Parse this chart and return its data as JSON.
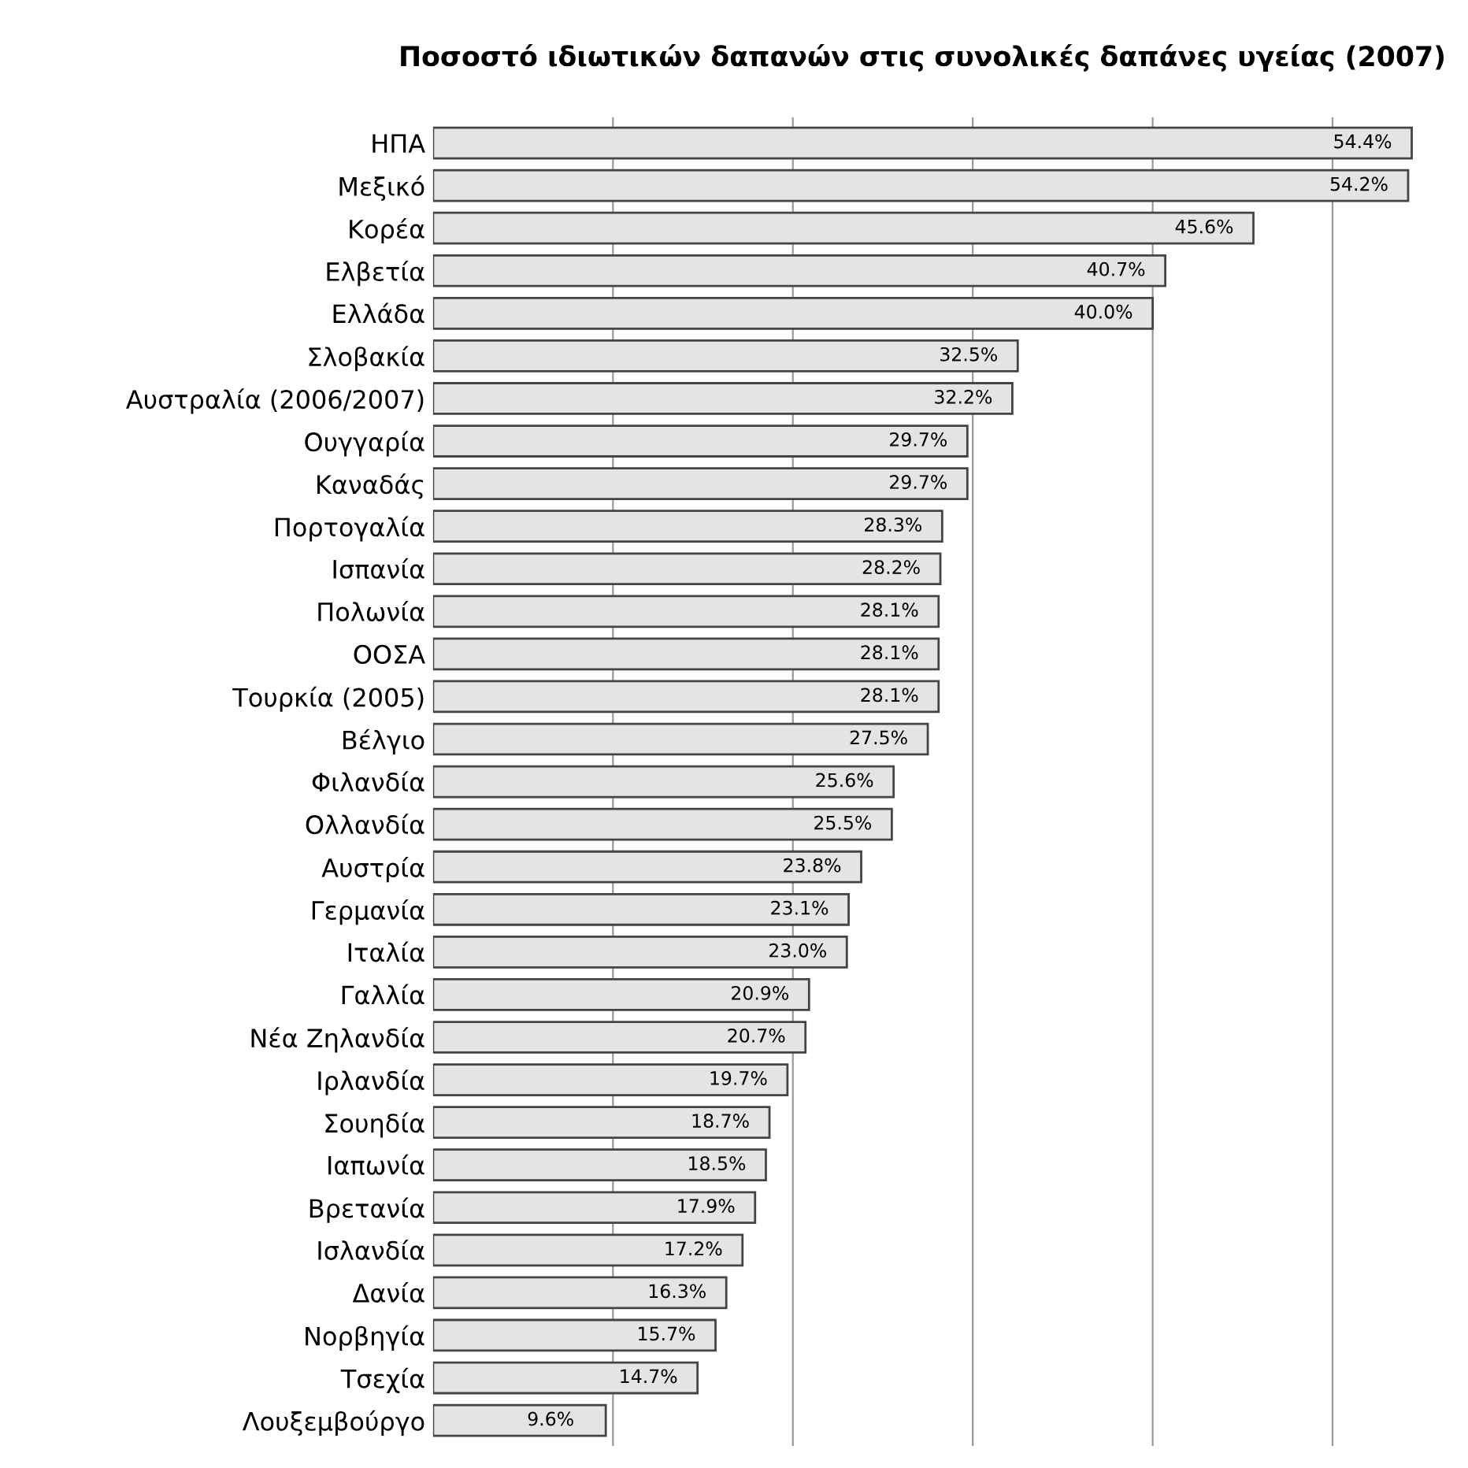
{
  "chart_data": {
    "type": "bar",
    "orientation": "horizontal",
    "title": "Ποσοστό ιδιωτικών δαπανών στις συνολικές δαπάνες υγείας (2007)",
    "categories": [
      "ΗΠΑ",
      "Μεξικό",
      "Κορέα",
      "Ελβετία",
      "Ελλάδα",
      "Σλοβακία",
      "Αυστραλία (2006/2007)",
      "Ουγγαρία",
      "Καναδάς",
      "Πορτογαλία",
      "Ισπανία",
      "Πολωνία",
      "ΟΟΣΑ",
      "Τουρκία (2005)",
      "Βέλγιο",
      "Φιλανδία",
      "Ολλανδία",
      "Αυστρία",
      "Γερμανία",
      "Ιταλία",
      "Γαλλία",
      "Νέα Ζηλανδία",
      "Ιρλανδία",
      "Σουηδία",
      "Ιαπωνία",
      "Βρετανία",
      "Ισλανδία",
      "Δανία",
      "Νορβηγία",
      "Τσεχία",
      "Λουξεμβούργο"
    ],
    "values": [
      54.4,
      54.2,
      45.6,
      40.7,
      40.0,
      32.5,
      32.2,
      29.7,
      29.7,
      28.3,
      28.2,
      28.1,
      28.1,
      28.1,
      27.5,
      25.6,
      25.5,
      23.8,
      23.1,
      23.0,
      20.9,
      20.7,
      19.7,
      18.7,
      18.5,
      17.9,
      17.2,
      16.3,
      15.7,
      14.7,
      9.6
    ],
    "value_labels": [
      "54.4%",
      "54.2%",
      "45.6%",
      "40.7%",
      "40.0%",
      "32.5%",
      "32.2%",
      "29.7%",
      "29.7%",
      "28.3%",
      "28.2%",
      "28.1%",
      "28.1%",
      "28.1%",
      "27.5%",
      "25.6%",
      "25.5%",
      "23.8%",
      "23.1%",
      "23.0%",
      "20.9%",
      "20.7%",
      "19.7%",
      "18.7%",
      "18.5%",
      "17.9%",
      "17.2%",
      "16.3%",
      "15.7%",
      "14.7%",
      "9.6%"
    ],
    "color": "#e4e4e4",
    "xticks": [
      {
        "value": 10,
        "label": null
      },
      {
        "value": 20,
        "label": null
      },
      {
        "value": 30,
        "label": null
      },
      {
        "value": 40,
        "label": null
      },
      {
        "value": 50,
        "label": null
      }
    ],
    "grid": "x",
    "tick_labels": "y"
  }
}
